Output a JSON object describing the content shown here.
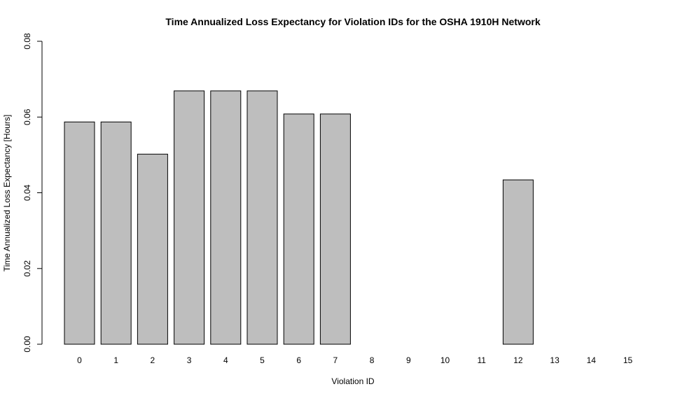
{
  "chart_data": {
    "type": "bar",
    "title": "Time Annualized Loss Expectancy for Violation IDs for the OSHA 1910H Network",
    "xlabel": "Violation ID",
    "ylabel": "Time Annualized Loss Expectancy [Hours]",
    "categories": [
      "0",
      "1",
      "2",
      "3",
      "4",
      "5",
      "6",
      "7",
      "8",
      "9",
      "10",
      "11",
      "12",
      "13",
      "14",
      "15"
    ],
    "values": [
      0.0587,
      0.0587,
      0.0502,
      0.0669,
      0.0669,
      0.0669,
      0.0608,
      0.0608,
      0,
      0,
      0,
      0,
      0.0434,
      0,
      0,
      0
    ],
    "ylim": [
      0,
      0.08
    ],
    "yticks": [
      "0.00",
      "0.02",
      "0.04",
      "0.06",
      "0.08"
    ],
    "grid": false,
    "legend": "none",
    "bar_color": "#bebebe",
    "edge_color": "#000000"
  }
}
